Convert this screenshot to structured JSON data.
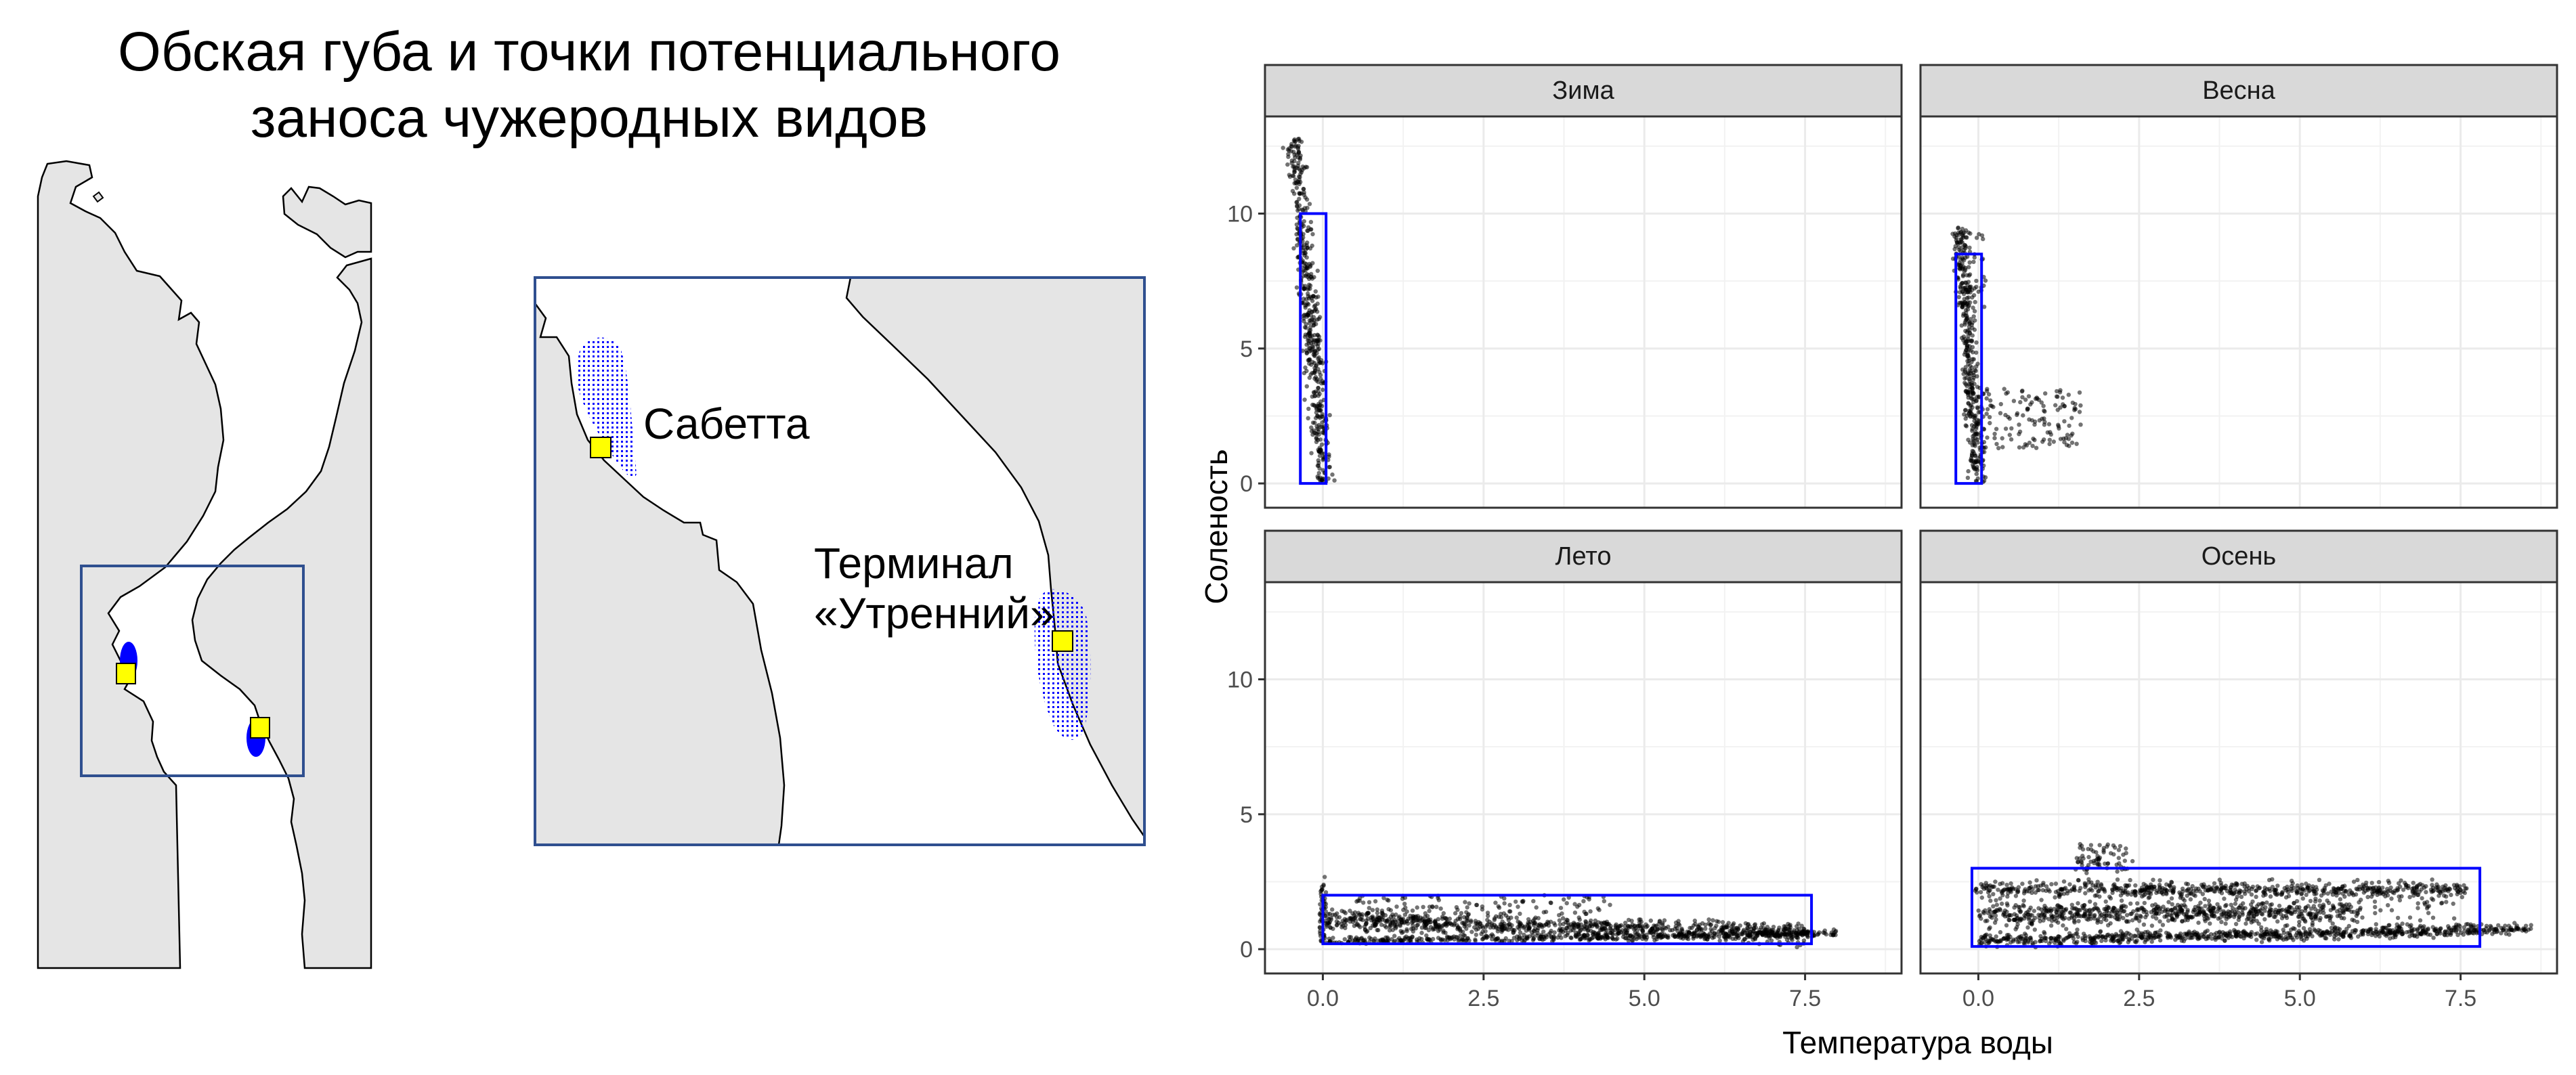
{
  "map": {
    "title_line1": "Обская губа и точки потенциального",
    "title_line2": "заноса чужеродных видов",
    "sites": [
      {
        "label_lines": [
          "Сабетта"
        ]
      },
      {
        "label_lines": [
          "Терминал",
          "«Утренний»"
        ]
      }
    ],
    "colors": {
      "land": "#e5e5e5",
      "frame": "#2f4f8f",
      "zone": "#0000ff",
      "site_marker": "#ffff00"
    }
  },
  "chart_data": {
    "type": "scatter",
    "xlabel": "Температура воды",
    "ylabel": "Соленость",
    "xlim": [
      -0.9,
      9.0
    ],
    "ylim": [
      -0.9,
      13.6
    ],
    "x_ticks": [
      0,
      2.5,
      5,
      7.5
    ],
    "x_tick_labels": [
      "0.0",
      "2.5",
      "5.0",
      "7.5"
    ],
    "y_ticks": [
      0,
      5,
      10
    ],
    "y_tick_labels": [
      "0",
      "5",
      "10"
    ],
    "grid": true,
    "mark_color": "#000000",
    "box_color": "#0000ff",
    "panels": [
      {
        "name": "Зима",
        "box": {
          "x": [
            -0.35,
            0.05
          ],
          "y": [
            0.0,
            10.0
          ]
        },
        "point_clouds": [
          {
            "kind": "band",
            "from": [
              -0.45,
              12.8
            ],
            "to": [
              0.02,
              0.05
            ],
            "width": 0.22,
            "points": 500
          }
        ]
      },
      {
        "name": "Весна",
        "box": {
          "x": [
            -0.35,
            0.05
          ],
          "y": [
            0.0,
            8.5
          ]
        },
        "point_clouds": [
          {
            "kind": "band",
            "from": [
              -0.3,
              9.5
            ],
            "to": [
              0.0,
              0.05
            ],
            "width": 0.18,
            "points": 380
          },
          {
            "kind": "scatter",
            "x": [
              0.0,
              1.6
            ],
            "y": [
              1.3,
              3.5
            ],
            "points": 140
          },
          {
            "kind": "scatter",
            "x": [
              -0.25,
              0.15
            ],
            "y": [
              6.5,
              9.3
            ],
            "points": 40
          }
        ]
      },
      {
        "name": "Лето",
        "box": {
          "x": [
            0.0,
            7.6
          ],
          "y": [
            0.2,
            2.0
          ]
        },
        "point_clouds": [
          {
            "kind": "spike",
            "x": [
              -0.05,
              0.05
            ],
            "y": [
              0.2,
              2.7
            ],
            "points": 50
          },
          {
            "kind": "band",
            "from": [
              0.0,
              1.1
            ],
            "to": [
              7.5,
              0.55
            ],
            "width": 0.55,
            "points": 900
          },
          {
            "kind": "band",
            "from": [
              0.0,
              0.3
            ],
            "to": [
              8.0,
              0.6
            ],
            "width": 0.2,
            "points": 450
          },
          {
            "kind": "scatter",
            "x": [
              0.5,
              4.5
            ],
            "y": [
              1.3,
              2.0
            ],
            "points": 100
          }
        ]
      },
      {
        "name": "Осень",
        "box": {
          "x": [
            -0.1,
            7.8
          ],
          "y": [
            0.1,
            3.0
          ]
        },
        "point_clouds": [
          {
            "kind": "band",
            "from": [
              -0.05,
              2.2
            ],
            "to": [
              7.6,
              2.2
            ],
            "width": 0.35,
            "points": 500
          },
          {
            "kind": "band",
            "from": [
              0.0,
              1.3
            ],
            "to": [
              6.0,
              1.4
            ],
            "width": 0.5,
            "points": 550
          },
          {
            "kind": "band",
            "from": [
              0.0,
              0.3
            ],
            "to": [
              8.6,
              0.75
            ],
            "width": 0.3,
            "points": 700
          },
          {
            "kind": "scatter",
            "x": [
              1.5,
              2.4
            ],
            "y": [
              2.8,
              3.9
            ],
            "points": 70
          },
          {
            "kind": "scatter",
            "x": [
              0.0,
              7.5
            ],
            "y": [
              0.4,
              2.6
            ],
            "points": 350
          }
        ]
      }
    ]
  }
}
